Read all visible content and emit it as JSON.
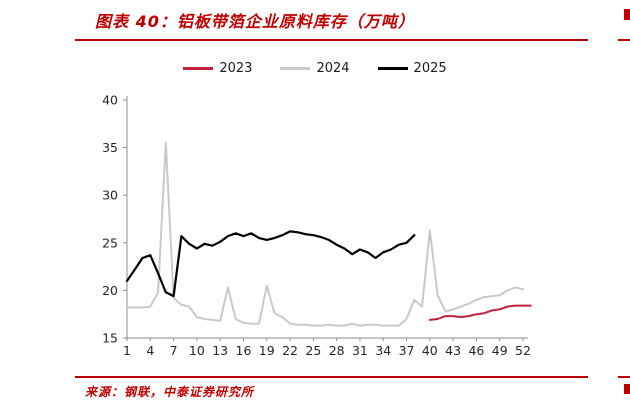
{
  "header": {
    "title": "图表 40：铝板带箔企业原料库存（万吨）"
  },
  "footer": {
    "source": "来源：钢联，中泰证券研究所"
  },
  "colors": {
    "accent_red": "#c00000",
    "axis_gray": "#8c8c8c",
    "label_dark": "#262626",
    "series_2023": "#c2203d",
    "series_2024": "#c9c9c9",
    "series_2025": "#000000"
  },
  "chart_data": {
    "type": "line",
    "title": "图表 40：铝板带箔企业原料库存（万吨）",
    "xlabel": "",
    "ylabel": "",
    "x_range": [
      1,
      52
    ],
    "ylim": [
      15,
      40
    ],
    "y_ticks": [
      15,
      20,
      25,
      30,
      35,
      40
    ],
    "x_ticks": [
      1,
      4,
      7,
      10,
      13,
      16,
      19,
      22,
      25,
      28,
      31,
      34,
      37,
      40,
      43,
      46,
      49,
      52
    ],
    "grid": false,
    "legend_position": "top",
    "series": [
      {
        "name": "2023",
        "color": "#c2203d",
        "width": 2,
        "values": [
          null,
          null,
          null,
          null,
          null,
          null,
          null,
          null,
          null,
          null,
          null,
          null,
          null,
          null,
          null,
          null,
          null,
          null,
          null,
          null,
          null,
          null,
          null,
          null,
          null,
          null,
          null,
          null,
          null,
          null,
          null,
          null,
          null,
          null,
          null,
          null,
          null,
          null,
          null,
          16.9,
          17.0,
          17.3,
          17.3,
          17.2,
          17.3,
          17.5,
          17.6,
          17.9,
          18.0,
          18.3,
          18.4,
          18.4,
          18.4
        ]
      },
      {
        "name": "2024",
        "color": "#c9c9c9",
        "width": 2,
        "values": [
          18.2,
          18.2,
          18.2,
          18.3,
          19.8,
          35.5,
          19.2,
          18.5,
          18.3,
          17.2,
          17.0,
          16.9,
          16.8,
          20.3,
          17.0,
          16.6,
          16.5,
          16.5,
          20.5,
          17.6,
          17.2,
          16.5,
          16.4,
          16.4,
          16.3,
          16.3,
          16.4,
          16.3,
          16.3,
          16.5,
          16.3,
          16.4,
          16.4,
          16.3,
          16.3,
          16.3,
          17.0,
          19.0,
          18.3,
          26.3,
          19.5,
          17.8,
          18.0,
          18.3,
          18.6,
          19.0,
          19.3,
          19.4,
          19.5,
          20.0,
          20.3,
          20.1
        ]
      },
      {
        "name": "2025",
        "color": "#000000",
        "width": 2.2,
        "values": [
          21.0,
          22.2,
          23.4,
          23.7,
          21.8,
          19.8,
          19.4,
          25.7,
          24.9,
          24.4,
          24.9,
          24.7,
          25.1,
          25.7,
          26.0,
          25.7,
          26.0,
          25.5,
          25.3,
          25.5,
          25.8,
          26.2,
          26.1,
          25.9,
          25.8,
          25.6,
          25.3,
          24.8,
          24.4,
          23.8,
          24.3,
          24.0,
          23.4,
          24.0,
          24.3,
          24.8,
          25.0,
          25.8,
          null,
          null,
          null,
          null,
          null,
          null,
          null,
          null,
          null,
          null,
          null,
          null,
          null,
          null
        ]
      }
    ]
  }
}
